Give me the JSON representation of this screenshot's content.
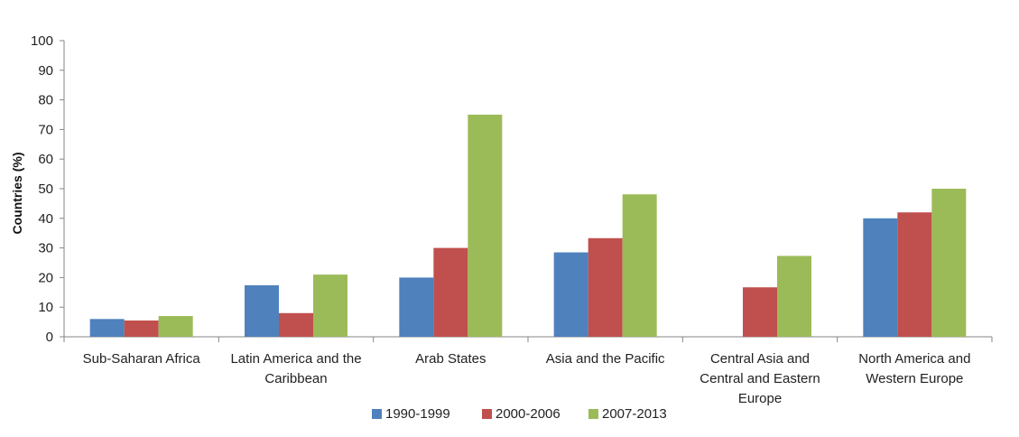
{
  "chart_data": {
    "type": "bar",
    "title": "",
    "xlabel": "",
    "ylabel": "Countries (%)",
    "ylim": [
      0,
      100
    ],
    "yticks": [
      0,
      10,
      20,
      30,
      40,
      50,
      60,
      70,
      80,
      90,
      100
    ],
    "grid": false,
    "legend_position": "bottom",
    "categories": [
      [
        "Sub-Saharan Africa"
      ],
      [
        "Latin America and the",
        "Caribbean"
      ],
      [
        "Arab States"
      ],
      [
        "Asia and the Pacific"
      ],
      [
        "Central Asia and",
        "Central and Eastern",
        "Europe"
      ],
      [
        "North America and",
        "Western Europe"
      ]
    ],
    "series": [
      {
        "name": "1990-1999",
        "color": "#4f81bd",
        "values": [
          6,
          17.4,
          20,
          28.5,
          0,
          40
        ]
      },
      {
        "name": "2000-2006",
        "color": "#c0504d",
        "values": [
          5.5,
          8,
          30,
          33.3,
          16.7,
          42
        ]
      },
      {
        "name": "2007-2013",
        "color": "#9bbb59",
        "values": [
          7,
          21,
          75,
          48.1,
          27.3,
          50
        ]
      }
    ]
  }
}
